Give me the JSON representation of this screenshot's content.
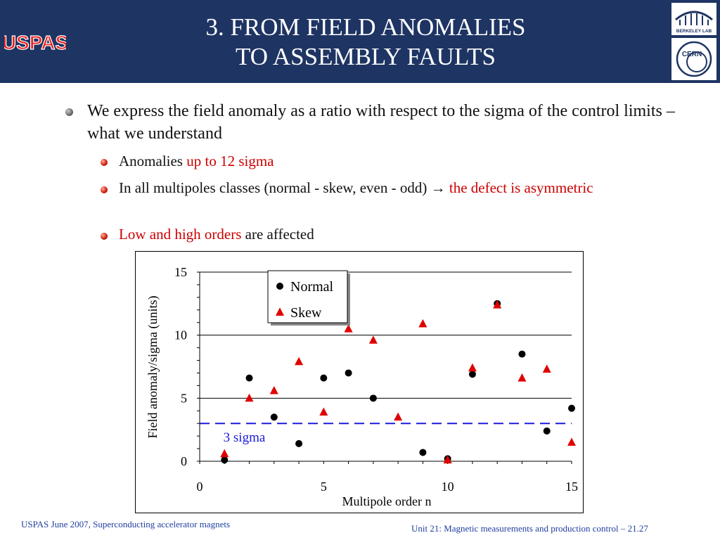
{
  "header": {
    "title_line1": "3. FROM FIELD ANOMALIES",
    "title_line2": "TO ASSEMBLY FAULTS",
    "logo_left_text": "USPAS",
    "logo_right_top_text": "BERKELEY LAB",
    "logo_right_bottom_text": "CERN"
  },
  "content": {
    "bullet1": "We express the field anomaly as a ratio with respect to the sigma of the control limits – what we understand",
    "sub1_prefix": "Anomalies ",
    "sub1_highlight": "up to 12 sigma",
    "sub2_prefix": "In all multipoles classes (normal - skew, even - odd) ",
    "sub2_arrow": "→",
    "sub2_highlight": " the defect is asymmetric",
    "sub3_highlight": "Low and high orders",
    "sub3_suffix": " are affected"
  },
  "chart_data": {
    "type": "scatter",
    "xlabel": "Multipole order n",
    "ylabel": "Field anomaly/sigma (units)",
    "xlim": [
      0,
      15
    ],
    "ylim": [
      0,
      15
    ],
    "xticks": [
      0,
      5,
      10,
      15
    ],
    "yticks": [
      0,
      5,
      10,
      15
    ],
    "grid": "horizontal",
    "legend_position": "top-center",
    "series": [
      {
        "name": "Normal",
        "marker": "circle",
        "color": "#000000",
        "points": [
          [
            1,
            0.1
          ],
          [
            2,
            6.6
          ],
          [
            3,
            3.5
          ],
          [
            4,
            1.4
          ],
          [
            5,
            6.6
          ],
          [
            6,
            7.0
          ],
          [
            7,
            5.0
          ],
          [
            9,
            0.7
          ],
          [
            10,
            0.2
          ],
          [
            11,
            6.9
          ],
          [
            12,
            12.5
          ],
          [
            13,
            8.5
          ],
          [
            14,
            2.4
          ],
          [
            15,
            4.2
          ]
        ]
      },
      {
        "name": "Skew",
        "marker": "triangle",
        "color": "#e00000",
        "points": [
          [
            1,
            0.6
          ],
          [
            2,
            5.0
          ],
          [
            3,
            5.6
          ],
          [
            4,
            7.9
          ],
          [
            5,
            3.9
          ],
          [
            6,
            10.5
          ],
          [
            7,
            9.6
          ],
          [
            8,
            3.5
          ],
          [
            9,
            10.9
          ],
          [
            10,
            0.1
          ],
          [
            11,
            7.4
          ],
          [
            12,
            12.4
          ],
          [
            13,
            6.6
          ],
          [
            14,
            7.3
          ],
          [
            15,
            1.5
          ]
        ]
      }
    ],
    "reference_line": {
      "y": 3,
      "label": "3 sigma",
      "color": "#1a1adb",
      "style": "dashed"
    }
  },
  "footer": {
    "left": "USPAS June 2007, Superconducting accelerator magnets",
    "right": "Unit 21: Magnetic measurements and production control – 21.27"
  }
}
